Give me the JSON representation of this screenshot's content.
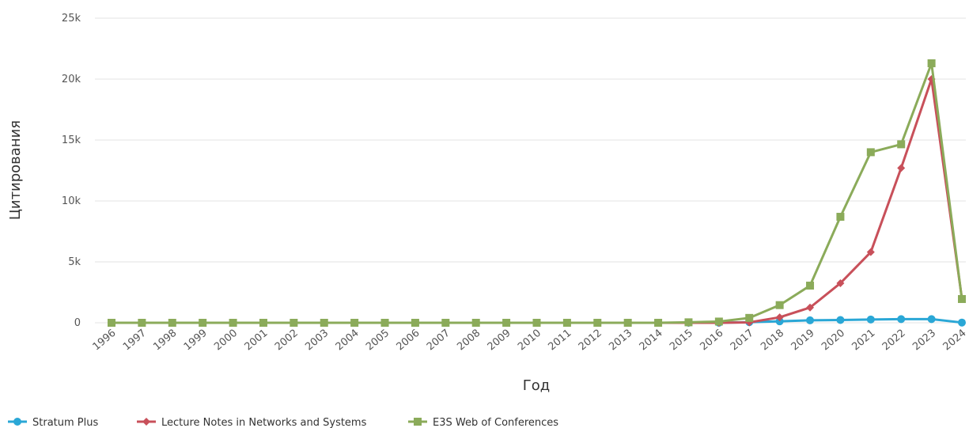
{
  "chart_data": {
    "type": "line",
    "xlabel": "Год",
    "ylabel": "Цитирования",
    "ylim": [
      0,
      25000
    ],
    "y_ticks": [
      0,
      5000,
      10000,
      15000,
      20000,
      25000
    ],
    "y_tick_labels": [
      "0",
      "5k",
      "10k",
      "15k",
      "20k",
      "25k"
    ],
    "grid": true,
    "legend_position": "bottom-left",
    "categories": [
      "1996",
      "1997",
      "1998",
      "1999",
      "2000",
      "2001",
      "2002",
      "2003",
      "2004",
      "2005",
      "2006",
      "2007",
      "2008",
      "2009",
      "2010",
      "2011",
      "2012",
      "2013",
      "2014",
      "2015",
      "2016",
      "2017",
      "2018",
      "2019",
      "2020",
      "2021",
      "2022",
      "2023",
      "2024"
    ],
    "series": [
      {
        "name": "Stratum Plus",
        "color": "#2aa7d6",
        "marker": "circle",
        "values": [
          0,
          0,
          0,
          0,
          0,
          0,
          0,
          0,
          0,
          0,
          0,
          0,
          0,
          0,
          0,
          0,
          0,
          0,
          0,
          0,
          0,
          50,
          120,
          200,
          230,
          270,
          300,
          300,
          20
        ]
      },
      {
        "name": "Lecture Notes in Networks and Systems",
        "color": "#c8505a",
        "marker": "diamond",
        "values": [
          0,
          0,
          0,
          0,
          0,
          0,
          0,
          0,
          0,
          0,
          0,
          0,
          0,
          0,
          0,
          0,
          0,
          0,
          0,
          0,
          0,
          30,
          450,
          1250,
          3250,
          5800,
          12700,
          20000,
          2000
        ]
      },
      {
        "name": "E3S Web of Conferences",
        "color": "#8bab5a",
        "marker": "square",
        "values": [
          0,
          0,
          0,
          0,
          0,
          0,
          0,
          0,
          0,
          0,
          0,
          0,
          0,
          0,
          0,
          0,
          0,
          0,
          0,
          40,
          100,
          400,
          1450,
          3050,
          8700,
          14000,
          14650,
          21300,
          1950
        ]
      }
    ]
  }
}
